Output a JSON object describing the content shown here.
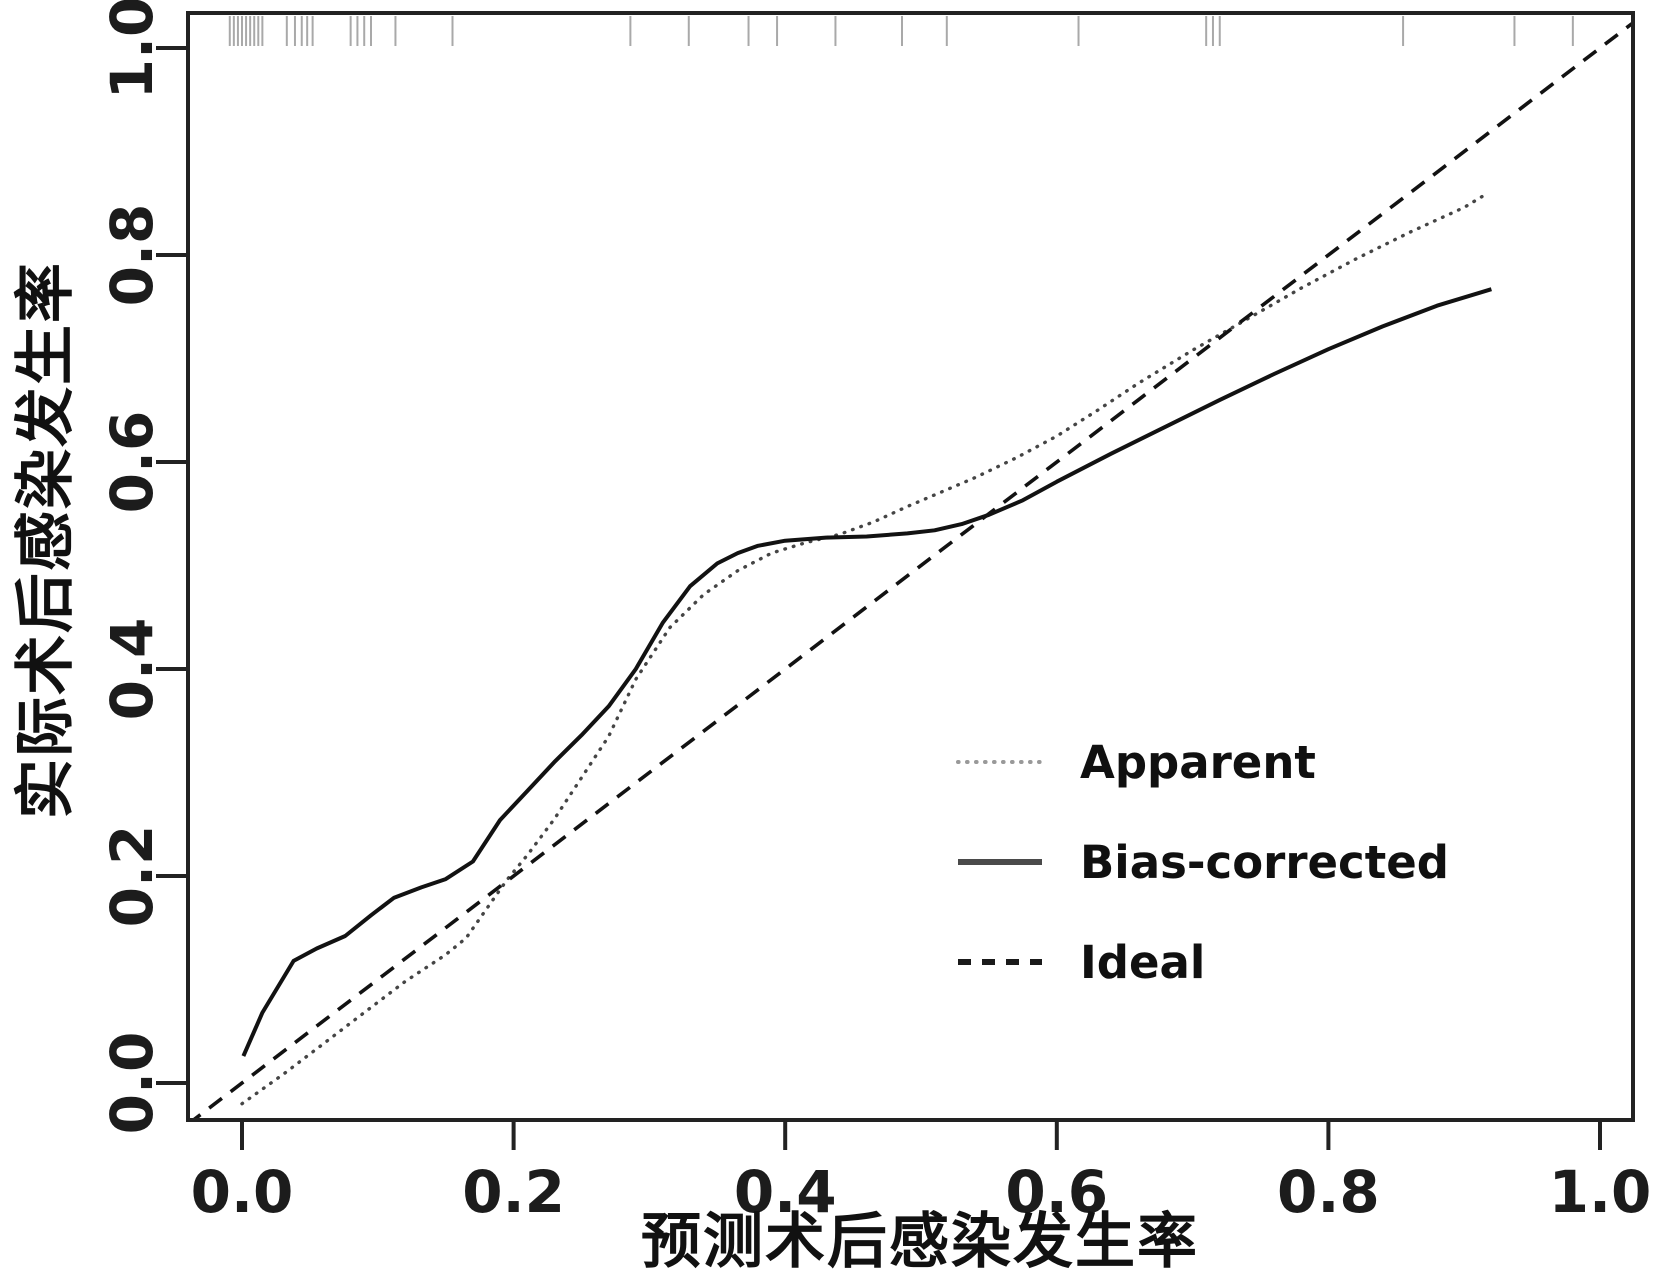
{
  "axes": {
    "x_label": "预测术后感染发生率",
    "y_label": "实际术后感染发生率",
    "x_tick_labels": [
      "0.0",
      "0.2",
      "0.4",
      "0.6",
      "0.8",
      "1.0"
    ],
    "y_tick_labels": [
      "0.0",
      "0.2",
      "0.4",
      "0.6",
      "0.8",
      "1.0"
    ]
  },
  "legend": {
    "items": [
      {
        "label": "Apparent",
        "style": "dotted",
        "color": "#999999"
      },
      {
        "label": "Bias-corrected",
        "style": "solid",
        "color": "#4a4a4a"
      },
      {
        "label": "Ideal",
        "style": "dashed",
        "color": "#1a1a1a"
      }
    ]
  },
  "colors": {
    "frame": "#222222",
    "curve_apparent": "#454545",
    "curve_bias": "#121212",
    "curve_ideal": "#121212",
    "rug": "#a9a9a9",
    "background": "#ffffff"
  },
  "chart_data": {
    "type": "line",
    "title": "",
    "xlabel": "预测术后感染发生率",
    "ylabel": "实际术后感染发生率",
    "xlim": [
      -0.04,
      1.03
    ],
    "ylim": [
      -0.04,
      1.04
    ],
    "x_ticks": [
      0.0,
      0.2,
      0.4,
      0.6,
      0.8,
      1.0
    ],
    "y_ticks": [
      0.0,
      0.2,
      0.4,
      0.6,
      0.8,
      1.0
    ],
    "grid": false,
    "legend_position": "right-center",
    "series": [
      {
        "name": "Apparent",
        "dash": "dotted",
        "color": "#454545",
        "points": [
          [
            0.0,
            -0.02
          ],
          [
            0.03,
            0.008
          ],
          [
            0.06,
            0.038
          ],
          [
            0.09,
            0.068
          ],
          [
            0.12,
            0.098
          ],
          [
            0.15,
            0.124
          ],
          [
            0.165,
            0.14
          ],
          [
            0.18,
            0.168
          ],
          [
            0.195,
            0.196
          ],
          [
            0.21,
            0.22
          ],
          [
            0.23,
            0.255
          ],
          [
            0.25,
            0.295
          ],
          [
            0.27,
            0.335
          ],
          [
            0.29,
            0.39
          ],
          [
            0.315,
            0.44
          ],
          [
            0.34,
            0.472
          ],
          [
            0.365,
            0.495
          ],
          [
            0.39,
            0.512
          ],
          [
            0.415,
            0.522
          ],
          [
            0.44,
            0.53
          ],
          [
            0.465,
            0.542
          ],
          [
            0.49,
            0.557
          ],
          [
            0.515,
            0.571
          ],
          [
            0.54,
            0.585
          ],
          [
            0.57,
            0.604
          ],
          [
            0.6,
            0.625
          ],
          [
            0.63,
            0.65
          ],
          [
            0.66,
            0.676
          ],
          [
            0.7,
            0.708
          ],
          [
            0.74,
            0.738
          ],
          [
            0.78,
            0.768
          ],
          [
            0.82,
            0.796
          ],
          [
            0.86,
            0.822
          ],
          [
            0.9,
            0.846
          ],
          [
            0.915,
            0.858
          ]
        ]
      },
      {
        "name": "Bias-corrected",
        "dash": "solid",
        "color": "#121212",
        "points": [
          [
            0.001,
            0.026
          ],
          [
            0.015,
            0.068
          ],
          [
            0.038,
            0.118
          ],
          [
            0.055,
            0.13
          ],
          [
            0.076,
            0.142
          ],
          [
            0.095,
            0.162
          ],
          [
            0.112,
            0.179
          ],
          [
            0.132,
            0.189
          ],
          [
            0.15,
            0.197
          ],
          [
            0.17,
            0.214
          ],
          [
            0.19,
            0.254
          ],
          [
            0.21,
            0.282
          ],
          [
            0.23,
            0.31
          ],
          [
            0.25,
            0.336
          ],
          [
            0.27,
            0.364
          ],
          [
            0.29,
            0.4
          ],
          [
            0.31,
            0.445
          ],
          [
            0.33,
            0.48
          ],
          [
            0.35,
            0.502
          ],
          [
            0.365,
            0.512
          ],
          [
            0.38,
            0.519
          ],
          [
            0.4,
            0.524
          ],
          [
            0.43,
            0.527
          ],
          [
            0.46,
            0.528
          ],
          [
            0.49,
            0.531
          ],
          [
            0.51,
            0.534
          ],
          [
            0.53,
            0.54
          ],
          [
            0.55,
            0.549
          ],
          [
            0.575,
            0.563
          ],
          [
            0.6,
            0.581
          ],
          [
            0.64,
            0.608
          ],
          [
            0.68,
            0.634
          ],
          [
            0.72,
            0.66
          ],
          [
            0.76,
            0.685
          ],
          [
            0.8,
            0.709
          ],
          [
            0.84,
            0.731
          ],
          [
            0.88,
            0.751
          ],
          [
            0.92,
            0.767
          ]
        ]
      },
      {
        "name": "Ideal",
        "dash": "dashed",
        "color": "#121212",
        "points": [
          [
            -0.04,
            -0.04
          ],
          [
            1.03,
            1.03
          ]
        ]
      }
    ],
    "rug_x": [
      -0.009,
      -0.006,
      -0.003,
      0.0,
      0.003,
      0.006,
      0.009,
      0.012,
      0.015,
      0.033,
      0.039,
      0.044,
      0.048,
      0.052,
      0.08,
      0.085,
      0.09,
      0.095,
      0.113,
      0.155,
      0.286,
      0.329,
      0.373,
      0.394,
      0.437,
      0.486,
      0.519,
      0.616,
      0.71,
      0.715,
      0.72,
      0.855,
      0.937,
      0.98
    ]
  }
}
